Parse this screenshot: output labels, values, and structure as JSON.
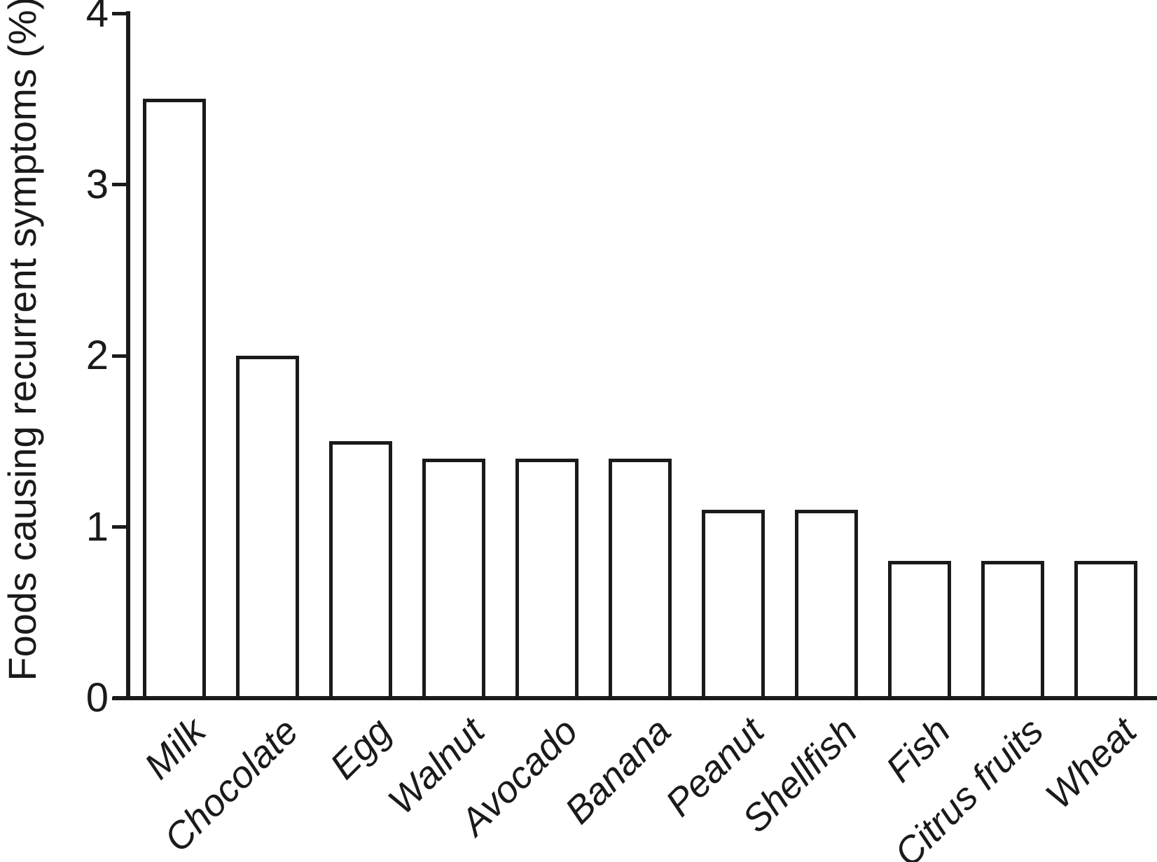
{
  "chart_data": {
    "type": "bar",
    "title": "",
    "categories": [
      "Milk",
      "Chocolate",
      "Egg",
      "Walnut",
      "Avocado",
      "Banana",
      "Peanut",
      "Shellfish",
      "Fish",
      "Citrus fruits",
      "Wheat"
    ],
    "values": [
      3.5,
      2.0,
      1.5,
      1.4,
      1.4,
      1.4,
      1.1,
      1.1,
      0.8,
      0.8,
      0.8
    ],
    "xlabel": "",
    "ylabel": "Foods causing recurrent symptoms (%)",
    "ylim": [
      0,
      4
    ],
    "yticks": [
      0,
      1,
      2,
      3,
      4
    ],
    "grid": false,
    "legend_position": "none",
    "category_label_rotation_deg": -45,
    "category_label_style": "italic",
    "colors": {
      "background": "#ffffff",
      "bar_fill": "#ffffff",
      "bar_stroke": "#1a1a1a",
      "axis": "#1a1a1a",
      "text": "#1a1a1a"
    }
  }
}
